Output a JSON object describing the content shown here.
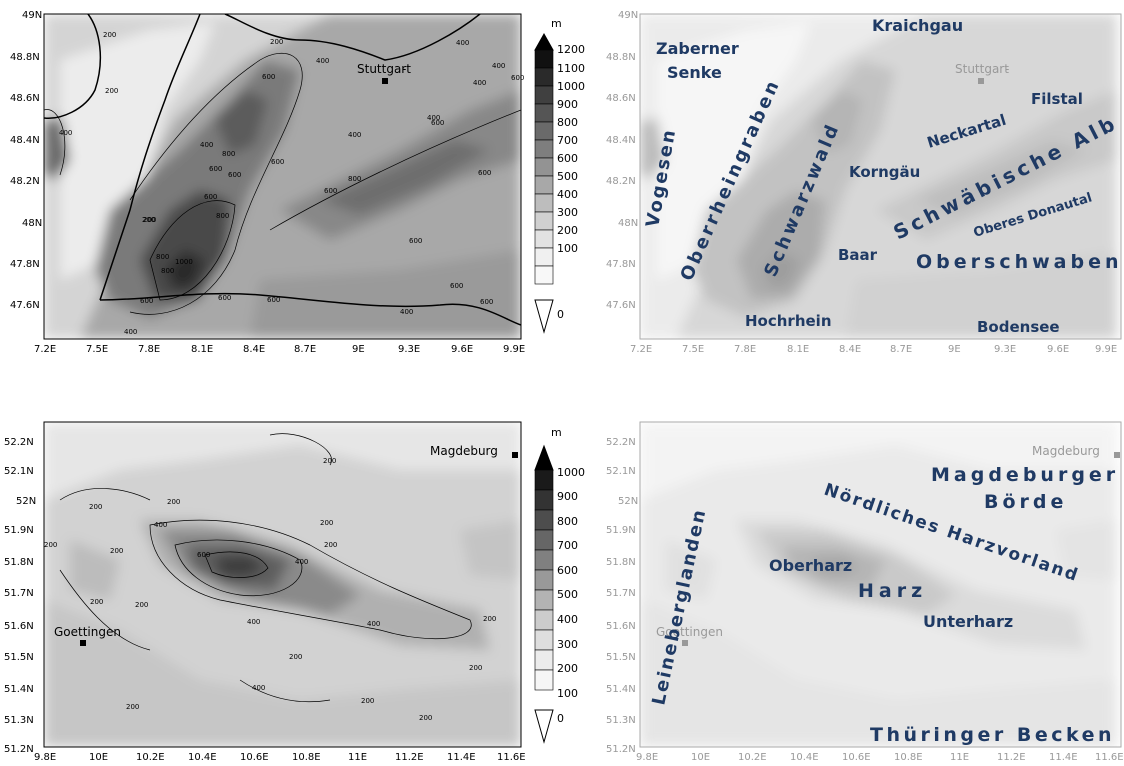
{
  "colorbar_unit": "m",
  "map1": {
    "x_ticks": [
      "7.2E",
      "7.5E",
      "7.8E",
      "8.1E",
      "8.4E",
      "8.7E",
      "9E",
      "9.3E",
      "9.6E",
      "9.9E"
    ],
    "y_ticks": [
      "49N",
      "48.8N",
      "48.6N",
      "48.4N",
      "48.2N",
      "48N",
      "47.8N",
      "47.6N"
    ],
    "city": "Stuttgart",
    "colorbar_levels": [
      "1200",
      "1100",
      "1000",
      "900",
      "800",
      "700",
      "600",
      "500",
      "400",
      "300",
      "200",
      "100",
      "0"
    ],
    "contour_labels": [
      "200",
      "200",
      "200",
      "400",
      "400",
      "400",
      "600",
      "600",
      "400",
      "400",
      "600",
      "400",
      "400",
      "600",
      "800",
      "600",
      "800",
      "600",
      "600",
      "800",
      "800",
      "600",
      "200",
      "800",
      "1000",
      "600",
      "600",
      "600",
      "600",
      "600",
      "400",
      "400",
      "600",
      "200",
      "600",
      "400"
    ],
    "regions": {
      "zaberner_1": "Zaberner",
      "zaberner_2": "Senke",
      "kraichgau": "Kraichgau",
      "vogesen": "Vogesen",
      "oberrheingraben": "Oberrheingraben",
      "schwarzwald": "Schwarzwald",
      "neckartal": "Neckartal",
      "filstal": "Filstal",
      "korngaeu": "Korngäu",
      "schwaebische_alb": "Schwäbische Alb",
      "oberes_donautal": "Oberes Donautal",
      "baar": "Baar",
      "oberschwaben": "Oberschwaben",
      "hochrhein": "Hochrhein",
      "bodensee": "Bodensee"
    }
  },
  "map2": {
    "x_ticks": [
      "9.8E",
      "10E",
      "10.2E",
      "10.4E",
      "10.6E",
      "10.8E",
      "11E",
      "11.2E",
      "11.4E",
      "11.6E"
    ],
    "y_ticks": [
      "52.2N",
      "52.1N",
      "52N",
      "51.9N",
      "51.8N",
      "51.7N",
      "51.6N",
      "51.5N",
      "51.4N",
      "51.3N",
      "51.2N"
    ],
    "city_ne": "Magdeburg",
    "city_sw": "Goettingen",
    "colorbar_levels": [
      "1000",
      "900",
      "800",
      "700",
      "600",
      "500",
      "400",
      "300",
      "200",
      "100",
      "0"
    ],
    "contour_labels": [
      "200",
      "200",
      "200",
      "200",
      "200",
      "400",
      "200",
      "200",
      "200",
      "600",
      "400",
      "200",
      "400",
      "200",
      "400",
      "200",
      "200",
      "400",
      "200",
      "200",
      "200"
    ],
    "regions": {
      "magdeburger": "Magdeburger",
      "boerde": "Börde",
      "noerdliches": "Nördliches Harzvorland",
      "leineberg": "Leineberglanden",
      "oberharz": "Oberharz",
      "harz": "Harz",
      "unterharz": "Unterharz",
      "thueringer": "Thüringer Becken"
    }
  },
  "colors": {
    "label_blue": "#1f3a64"
  }
}
